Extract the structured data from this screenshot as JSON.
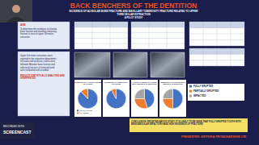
{
  "header": {
    "title": "BACK BENCHERS OF THE DENTITION",
    "subtitle": "INCIDENCE OF ALVEOLAR BONE FRACTURE AND MAXILLARY TUBEROSITY FRACTURE RELATED TO UPPER THIRD MOLAR EXTRACTION",
    "note": "A PILOT STUDY"
  },
  "aim": {
    "heading": "AIM",
    "text": "To determine the incidence of alveolar bone fracture and maxillary tuberosity fracture in case of upper 3rd molar extraction"
  },
  "method": {
    "text": "Upper 3rd molar extractions were reported in the outpatient department. Inclusion and exclusion criteria were followed. Alveolar bone fracture and tuberosity fracture of removed tooth were evaluated and recorded.",
    "result": "RESULTS STATISTICALLY ANALYSED AND INTERPRETED"
  },
  "conclusion": "CONCLUSION: FROM THE ABOVE STUDY, IT IS LIKELY TO BE SEEN THAT FULLY ERUPTED TOOTH WITH MESIOANGULAR IMPACTION HAVE HIGH INCIDENCE OF FRACTURE",
  "presenter": "PRESENTER: KRITHIKA PRIYADHARSHINI CRI",
  "watermark": [
    "RECORDED WITH",
    "SCREENCAST"
  ],
  "chart_data": [
    {
      "type": "pie",
      "title": "INCIDENCE OF ALVEOLAR BONE FRACTURE",
      "categories": [
        "NO FRACTURE",
        "FRACTURE"
      ],
      "values": [
        88,
        12
      ],
      "colors": [
        "#4472c4",
        "#ed7d31"
      ],
      "legend": "bottom"
    },
    {
      "type": "pie",
      "title": "INCIDENCE OF TUBEROSITY FRACTURE",
      "categories": [
        "NO FRACTURE",
        "FRACTURE"
      ],
      "values": [
        92,
        8
      ],
      "colors": [
        "#4472c4",
        "#ed7d31"
      ],
      "legend": "bottom"
    },
    {
      "type": "pie",
      "title": "ALVEOLAR BONE FRACTURE WITH RESPECT TO ERUPTION",
      "categories": [
        "FULLY ERUPTED",
        "PARTIALLY ERUPTED",
        "IMPACTED"
      ],
      "values": [
        45,
        30,
        25
      ],
      "colors": [
        "#4472c4",
        "#ed7d31",
        "#a5a5a5"
      ],
      "legend": "right"
    },
    {
      "type": "pie",
      "title": "TUBEROSITY FRACTURE WITH RESPECT TO ERUPTION",
      "categories": [
        "FULLY ERUPTED",
        "PARTIALLY ERUPTED",
        "IMPACTED"
      ],
      "values": [
        50,
        25,
        25
      ],
      "colors": [
        "#4472c4",
        "#ed7d31",
        "#a5a5a5"
      ],
      "legend": "right"
    }
  ]
}
